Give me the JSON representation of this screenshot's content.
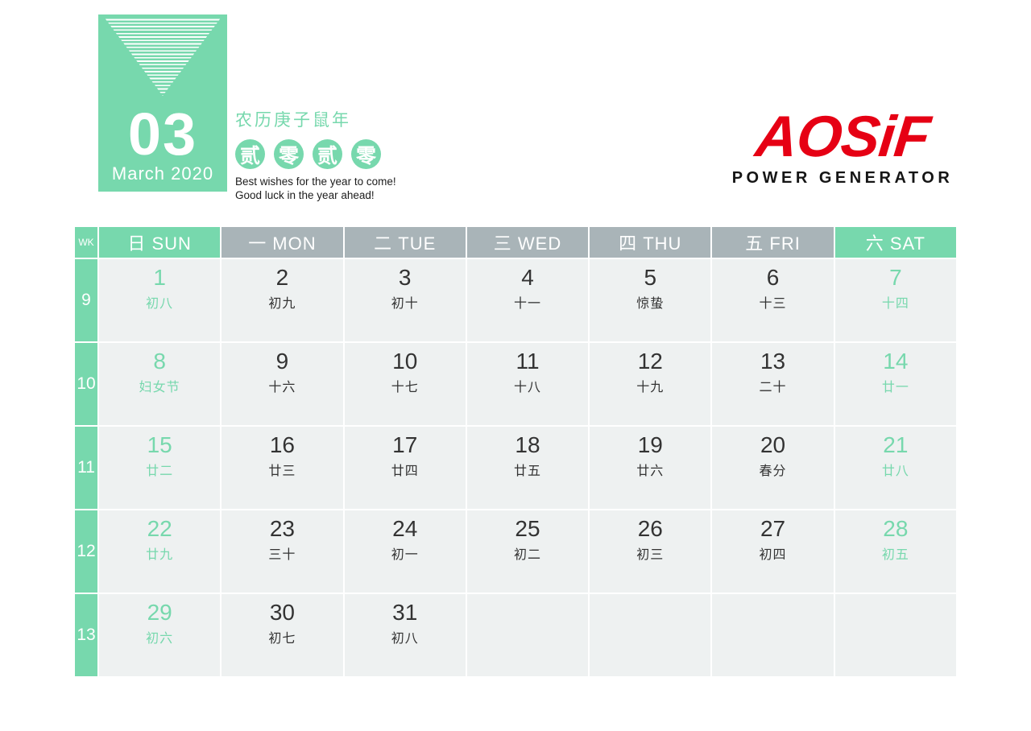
{
  "colors": {
    "mint": "#77d8ad",
    "header_gray": "#a9b4b8",
    "cell_bg": "#eef1f1",
    "date_text": "#333333",
    "logo_red": "#e60014",
    "logo_black": "#151515"
  },
  "month_box": {
    "month_number": "03",
    "month_label": "March 2020"
  },
  "year_info": {
    "lunar_year_label": "农历庚子鼠年",
    "year_circles": [
      "贰",
      "零",
      "贰",
      "零"
    ],
    "greeting_line1": "Best wishes for the year to come!",
    "greeting_line2": "Good luck in the year ahead!"
  },
  "logo": {
    "brand": "AOSiF",
    "tagline": "POWER GENERATOR"
  },
  "calendar": {
    "wk_label": "WK",
    "day_headers": [
      {
        "label": "日 SUN",
        "type": "weekend"
      },
      {
        "label": "一 MON",
        "type": "weekday"
      },
      {
        "label": "二 TUE",
        "type": "weekday"
      },
      {
        "label": "三 WED",
        "type": "weekday"
      },
      {
        "label": "四 THU",
        "type": "weekday"
      },
      {
        "label": "五 FRI",
        "type": "weekday"
      },
      {
        "label": "六 SAT",
        "type": "weekend"
      }
    ],
    "weeks": [
      {
        "week_number": "9",
        "days": [
          {
            "date": "1",
            "lunar": "初八",
            "weekend": true
          },
          {
            "date": "2",
            "lunar": "初九",
            "weekend": false
          },
          {
            "date": "3",
            "lunar": "初十",
            "weekend": false
          },
          {
            "date": "4",
            "lunar": "十一",
            "weekend": false
          },
          {
            "date": "5",
            "lunar": "惊蛰",
            "weekend": false
          },
          {
            "date": "6",
            "lunar": "十三",
            "weekend": false
          },
          {
            "date": "7",
            "lunar": "十四",
            "weekend": true
          }
        ]
      },
      {
        "week_number": "10",
        "days": [
          {
            "date": "8",
            "lunar": "妇女节",
            "weekend": true
          },
          {
            "date": "9",
            "lunar": "十六",
            "weekend": false
          },
          {
            "date": "10",
            "lunar": "十七",
            "weekend": false
          },
          {
            "date": "11",
            "lunar": "十八",
            "weekend": false
          },
          {
            "date": "12",
            "lunar": "十九",
            "weekend": false
          },
          {
            "date": "13",
            "lunar": "二十",
            "weekend": false
          },
          {
            "date": "14",
            "lunar": "廿一",
            "weekend": true
          }
        ]
      },
      {
        "week_number": "11",
        "days": [
          {
            "date": "15",
            "lunar": "廿二",
            "weekend": true
          },
          {
            "date": "16",
            "lunar": "廿三",
            "weekend": false
          },
          {
            "date": "17",
            "lunar": "廿四",
            "weekend": false
          },
          {
            "date": "18",
            "lunar": "廿五",
            "weekend": false
          },
          {
            "date": "19",
            "lunar": "廿六",
            "weekend": false
          },
          {
            "date": "20",
            "lunar": "春分",
            "weekend": false
          },
          {
            "date": "21",
            "lunar": "廿八",
            "weekend": true
          }
        ]
      },
      {
        "week_number": "12",
        "days": [
          {
            "date": "22",
            "lunar": "廿九",
            "weekend": true
          },
          {
            "date": "23",
            "lunar": "三十",
            "weekend": false
          },
          {
            "date": "24",
            "lunar": "初一",
            "weekend": false
          },
          {
            "date": "25",
            "lunar": "初二",
            "weekend": false
          },
          {
            "date": "26",
            "lunar": "初三",
            "weekend": false
          },
          {
            "date": "27",
            "lunar": "初四",
            "weekend": false
          },
          {
            "date": "28",
            "lunar": "初五",
            "weekend": true
          }
        ]
      },
      {
        "week_number": "13",
        "days": [
          {
            "date": "29",
            "lunar": "初六",
            "weekend": true
          },
          {
            "date": "30",
            "lunar": "初七",
            "weekend": false
          },
          {
            "date": "31",
            "lunar": "初八",
            "weekend": false
          },
          {
            "date": "",
            "lunar": "",
            "weekend": false
          },
          {
            "date": "",
            "lunar": "",
            "weekend": false
          },
          {
            "date": "",
            "lunar": "",
            "weekend": false
          },
          {
            "date": "",
            "lunar": "",
            "weekend": true
          }
        ]
      }
    ]
  }
}
